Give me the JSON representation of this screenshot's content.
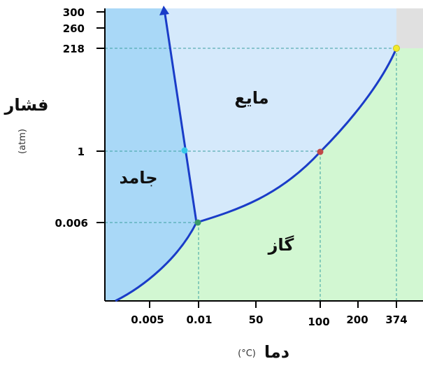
{
  "diagram": {
    "regions": {
      "solid": "جامد",
      "liquid": "مایع",
      "gas": "گاز"
    },
    "axis_y": {
      "title": "فشار",
      "unit": "(atm)",
      "ticks": [
        "300",
        "260",
        "218",
        "1",
        "0.006"
      ]
    },
    "axis_x": {
      "title": "دما",
      "unit": "(°C)",
      "ticks": [
        "0.005",
        "0.01",
        "50",
        "100",
        "200",
        "374"
      ]
    },
    "colors": {
      "solid": "#a9d8f7",
      "liquid": "#d5e9fb",
      "gas": "#d2f7d2",
      "supercritical": "#e0e0e0",
      "curve": "#1a3cc8",
      "triple_point": "#3a9a6a",
      "boiling_point": "#c04848",
      "melting_point": "#36c8e8",
      "critical_point": "#f2ea2a"
    }
  }
}
